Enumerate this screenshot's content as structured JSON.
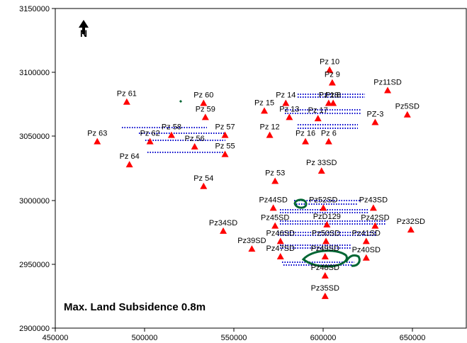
{
  "map": {
    "title": "Max. Land Subsidence 0.8m",
    "north_label": "N",
    "x_range": [
      450000,
      680000
    ],
    "y_range": [
      2900000,
      3150000
    ],
    "x_ticks": [
      "450000",
      "500000",
      "550000",
      "600000",
      "650000"
    ],
    "y_ticks": [
      "2900000",
      "2950000",
      "3000000",
      "3050000",
      "3100000",
      "3150000"
    ],
    "colors": {
      "well_marker": "#ff0000",
      "contour_blue": "#0000cc",
      "contour_green": "#006633",
      "axis": "#000000"
    },
    "wells": [
      {
        "name": "Pz 10",
        "x": 603500,
        "y": 3102000
      },
      {
        "name": "Pz 9",
        "x": 605000,
        "y": 3092000
      },
      {
        "name": "Pz11SD",
        "x": 636000,
        "y": 3086000
      },
      {
        "name": "Pz 61",
        "x": 490000,
        "y": 3077000
      },
      {
        "name": "Pz 60",
        "x": 533000,
        "y": 3076000
      },
      {
        "name": "Pz 14",
        "x": 579000,
        "y": 3076000
      },
      {
        "name": "Pz 18",
        "x": 603000,
        "y": 3076000
      },
      {
        "name": "Pz 8",
        "x": 605500,
        "y": 3076000
      },
      {
        "name": "Pz 15",
        "x": 567000,
        "y": 3070000
      },
      {
        "name": "Pz5SD",
        "x": 647000,
        "y": 3067000
      },
      {
        "name": "Pz 59",
        "x": 534000,
        "y": 3065000
      },
      {
        "name": "Pz 13",
        "x": 581000,
        "y": 3065000
      },
      {
        "name": "Pz 17",
        "x": 597000,
        "y": 3064000
      },
      {
        "name": "PZ-3",
        "x": 629000,
        "y": 3061000
      },
      {
        "name": "Pz 12",
        "x": 570000,
        "y": 3051000
      },
      {
        "name": "Pz 58",
        "x": 515000,
        "y": 3051000
      },
      {
        "name": "Pz 57",
        "x": 545000,
        "y": 3051000
      },
      {
        "name": "Pz 63",
        "x": 473500,
        "y": 3046000
      },
      {
        "name": "Pz 62",
        "x": 503000,
        "y": 3046000
      },
      {
        "name": "Pz 56",
        "x": 528000,
        "y": 3042000
      },
      {
        "name": "Pz 16",
        "x": 590000,
        "y": 3046000
      },
      {
        "name": "Pz 6",
        "x": 603000,
        "y": 3046000
      },
      {
        "name": "Pz 55",
        "x": 545000,
        "y": 3036000
      },
      {
        "name": "Pz 64",
        "x": 491500,
        "y": 3028000
      },
      {
        "name": "Pz 33SD",
        "x": 599000,
        "y": 3023000
      },
      {
        "name": "Pz 53",
        "x": 573000,
        "y": 3015000
      },
      {
        "name": "Pz 54",
        "x": 533000,
        "y": 3011000
      },
      {
        "name": "Pz44SD",
        "x": 572000,
        "y": 2994000
      },
      {
        "name": "Pz52SD",
        "x": 600000,
        "y": 2994000
      },
      {
        "name": "Pz43SD",
        "x": 628000,
        "y": 2994000
      },
      {
        "name": "Pz45SD",
        "x": 573000,
        "y": 2980000
      },
      {
        "name": "PzD129",
        "x": 602000,
        "y": 2981000
      },
      {
        "name": "Pz42SD",
        "x": 629000,
        "y": 2980000
      },
      {
        "name": "Pz32SD",
        "x": 649000,
        "y": 2977000
      },
      {
        "name": "Pz34SD",
        "x": 544000,
        "y": 2976000
      },
      {
        "name": "Pz46SD",
        "x": 576000,
        "y": 2968000
      },
      {
        "name": "Pz50SD",
        "x": 601500,
        "y": 2968000
      },
      {
        "name": "Pz41SD",
        "x": 624000,
        "y": 2968000
      },
      {
        "name": "Pz39SD",
        "x": 560000,
        "y": 2962000
      },
      {
        "name": "Pz47SD",
        "x": 576000,
        "y": 2956000
      },
      {
        "name": "Pz49SD",
        "x": 601000,
        "y": 2956000
      },
      {
        "name": "Pz40SD",
        "x": 624000,
        "y": 2955000
      },
      {
        "name": "Pz48SD",
        "x": 601000,
        "y": 2941000
      },
      {
        "name": "Pz35SD",
        "x": 601000,
        "y": 2925000
      }
    ]
  }
}
